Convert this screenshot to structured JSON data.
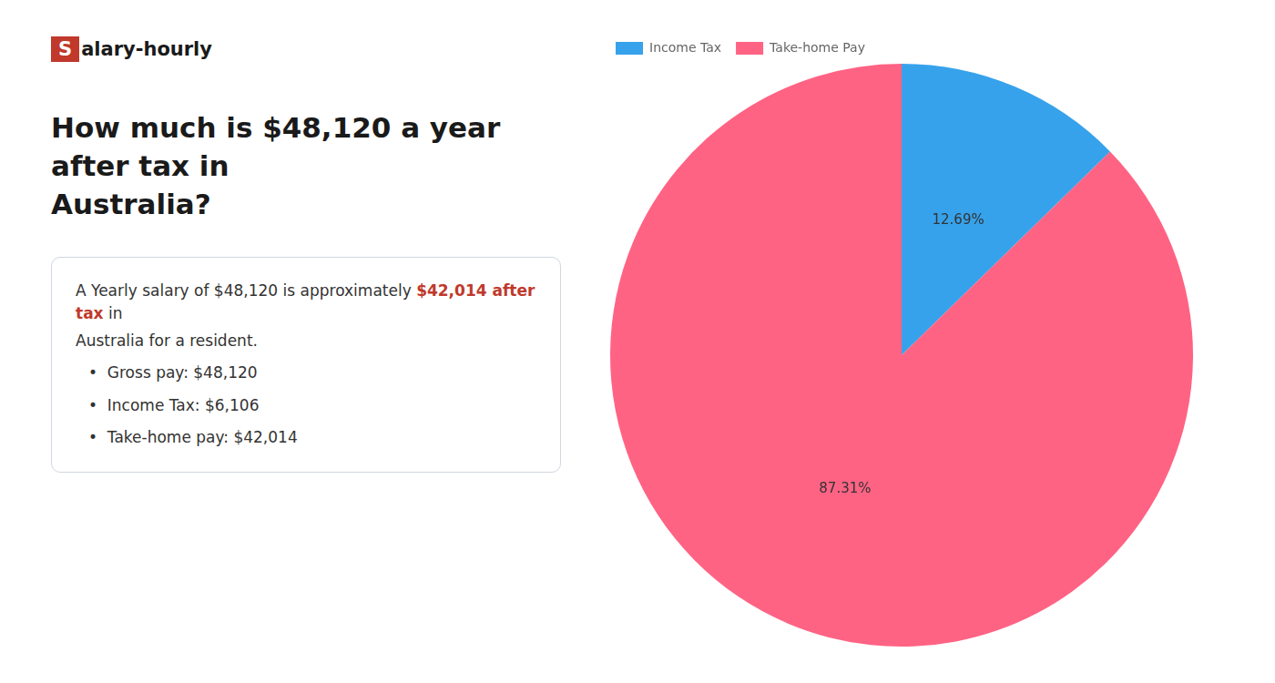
{
  "chart_data": {
    "type": "pie",
    "title": [
      "How much is $48,120 a year after tax in",
      "Australia?"
    ],
    "categories": [
      "Income Tax",
      "Take-home Pay"
    ],
    "values": [
      12.69,
      87.31
    ],
    "value_labels": [
      "12.69%",
      "87.31%"
    ],
    "data_labels": true,
    "legend": "upper left",
    "annotations": [
      [
        {
          "text": "S",
          "color": "#c0392b"
        },
        {
          "text": "alary-hourly"
        }
      ],
      [
        {
          "text": "A Yearly salary of $48,120 is approximately "
        },
        {
          "text": "$42,014 after tax",
          "color": "#c0392b"
        },
        {
          "text": " in"
        }
      ],
      [
        {
          "text": "Australia for a resident."
        }
      ],
      [
        {
          "text": "•  Gross pay: $48,120"
        }
      ],
      [
        {
          "text": "•  Income Tax: $6,106"
        }
      ],
      [
        {
          "text": "•  Take-home pay: $42,014"
        }
      ]
    ]
  }
}
